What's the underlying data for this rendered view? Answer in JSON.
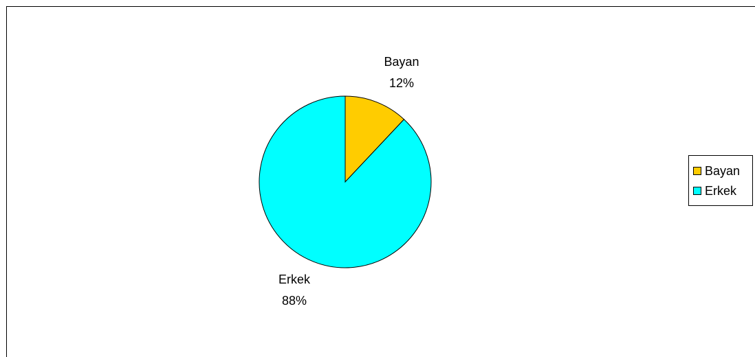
{
  "chart_data": {
    "type": "pie",
    "categories": [
      "Bayan",
      "Erkek"
    ],
    "values": [
      12,
      88
    ],
    "labels": [
      {
        "name": "Bayan",
        "value_text": "12%"
      },
      {
        "name": "Erkek",
        "value_text": "88%"
      }
    ],
    "colors": [
      "#ffcc00",
      "#00ffff"
    ],
    "legend": {
      "position": "right",
      "items": [
        {
          "name": "Bayan",
          "color": "#ffcc00"
        },
        {
          "name": "Erkek",
          "color": "#00ffff"
        }
      ]
    }
  }
}
